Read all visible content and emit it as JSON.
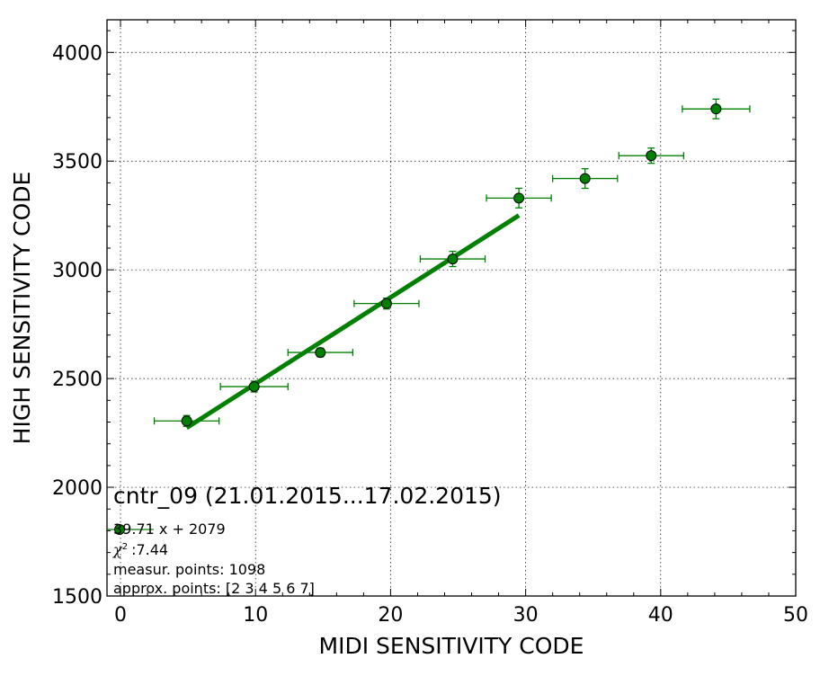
{
  "chart_data": {
    "type": "scatter",
    "title": "cntr_09 (21.01.2015...17.02.2015)",
    "xlabel": "MIDI SENSITIVITY CODE",
    "ylabel": "HIGH SENSITIVITY CODE",
    "xlim": [
      -1,
      50
    ],
    "ylim": [
      1500,
      4150
    ],
    "xticks": [
      "0",
      "10",
      "20",
      "30",
      "40",
      "50"
    ],
    "yticks": [
      "1500",
      "2000",
      "2500",
      "3000",
      "3500",
      "4000"
    ],
    "grid": true,
    "colors": {
      "series": "#008000",
      "marker_fill": "#007f00",
      "marker_edge": "#000000"
    },
    "series": [
      {
        "x": [
          4.9,
          9.9,
          14.8,
          19.7,
          24.6,
          29.5,
          34.4,
          39.3,
          44.1
        ],
        "y": [
          2305,
          2463,
          2620,
          2845,
          3050,
          3330,
          3420,
          3525,
          3740
        ],
        "xerr": [
          2.4,
          2.5,
          2.4,
          2.4,
          2.4,
          2.4,
          2.4,
          2.4,
          2.5
        ],
        "yerr": [
          25,
          25,
          20,
          25,
          35,
          45,
          45,
          35,
          45
        ]
      }
    ],
    "fit": {
      "slope": 39.71,
      "intercept": 2079,
      "x_range": [
        4.9,
        29.5
      ],
      "color": "#008000"
    },
    "legend_position": "lower-left",
    "annotations": {
      "equation": "39.71 x + 2079",
      "chi2_value": ":7.44",
      "measur_points": "measur. points: 1098",
      "approx_points": "approx. points: [2 3 4 5 6 7]"
    }
  }
}
